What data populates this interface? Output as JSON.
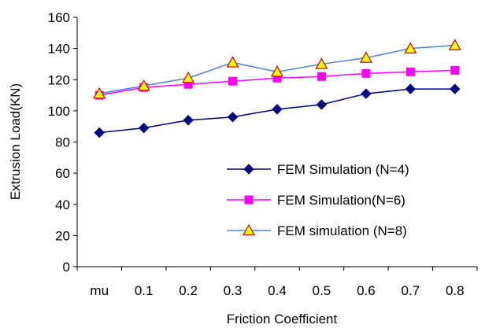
{
  "chart_data": {
    "type": "line",
    "title": "",
    "xlabel": "Friction Coefficient",
    "ylabel": "Extrusion Load(KN)",
    "categories": [
      "mu",
      "0.1",
      "0.2",
      "0.3",
      "0.4",
      "0.5",
      "0.6",
      "0.7",
      "0.8"
    ],
    "ylim": [
      0,
      160
    ],
    "yticks": [
      0,
      20,
      40,
      60,
      80,
      100,
      120,
      140,
      160
    ],
    "grid": false,
    "legend_position": "right-center",
    "series": [
      {
        "name": "FEM Simulation (N=4)",
        "marker": "diamond",
        "color": "#000080",
        "marker_color": "#000080",
        "values": [
          86,
          89,
          94,
          96,
          101,
          104,
          111,
          114,
          114
        ]
      },
      {
        "name": "FEM Simulation(N=6)",
        "marker": "square",
        "color": "#ff00ff",
        "marker_color": "#ff00ff",
        "values": [
          110,
          115,
          117,
          119,
          121,
          122,
          124,
          125,
          126
        ]
      },
      {
        "name": "FEM simulation (N=8)",
        "marker": "triangle",
        "color": "#4d7fe6",
        "marker_color": "#ffff00",
        "marker_edge": "#cc0000",
        "values": [
          111,
          116,
          121,
          131,
          125,
          130,
          134,
          140,
          142
        ]
      }
    ]
  }
}
